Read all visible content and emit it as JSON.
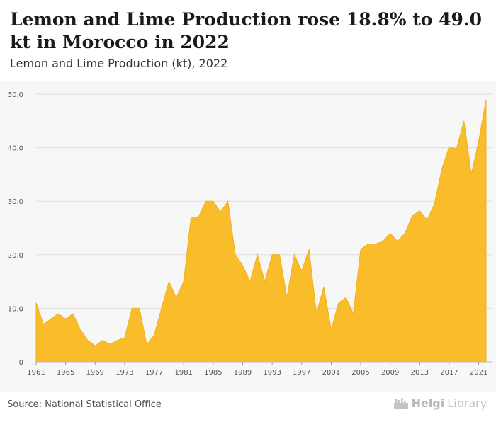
{
  "header": {
    "title": "Lemon and Lime Production rose 18.8% to 49.0 kt in Morocco in 2022",
    "subtitle": "Lemon and Lime Production (kt), 2022"
  },
  "footer": {
    "source": "Source: National Statistical Office",
    "logo_name": "Helgi",
    "logo_suffix": "Library."
  },
  "colors": {
    "area_fill": "#f9bd2c",
    "area_stroke": "#f0b01a",
    "grid": "#dddddd",
    "axis_text": "#555555"
  },
  "chart_data": {
    "type": "area",
    "title": "Lemon and Lime Production (kt), 2022",
    "xlabel": "",
    "ylabel": "",
    "ylim": [
      0,
      50
    ],
    "xlim": [
      1961,
      2022
    ],
    "yticks": [
      0,
      10.0,
      20.0,
      30.0,
      40.0,
      50.0
    ],
    "ytick_labels": [
      "0",
      "10.0",
      "20.0",
      "30.0",
      "40.0",
      "50.0"
    ],
    "xticks": [
      1961,
      1965,
      1969,
      1973,
      1977,
      1981,
      1985,
      1989,
      1993,
      1997,
      2001,
      2005,
      2009,
      2013,
      2017,
      2021
    ],
    "grid": true,
    "series": [
      {
        "x": [
          1961,
          1962,
          1963,
          1964,
          1965,
          1966,
          1967,
          1968,
          1969,
          1970,
          1971,
          1972,
          1973,
          1974,
          1975,
          1976,
          1977,
          1978,
          1979,
          1980,
          1981,
          1982,
          1983,
          1984,
          1985,
          1986,
          1987,
          1988,
          1989,
          1990,
          1991,
          1992,
          1993,
          1994,
          1995,
          1996,
          1997,
          1998,
          1999,
          2000,
          2001,
          2002,
          2003,
          2004,
          2005,
          2006,
          2007,
          2008,
          2009,
          2010,
          2011,
          2012,
          2013,
          2014,
          2015,
          2016,
          2017,
          2018,
          2019,
          2020,
          2021,
          2022
        ],
        "values": [
          11.0,
          7.0,
          8.0,
          9.0,
          8.0,
          9.0,
          6.0,
          4.0,
          3.0,
          4.0,
          3.3,
          4.0,
          4.5,
          10.0,
          10.0,
          3.2,
          5.0,
          10.0,
          15.0,
          12.0,
          15.0,
          27.0,
          27.0,
          30.0,
          30.0,
          28.0,
          30.0,
          20.0,
          18.0,
          15.0,
          20.0,
          15.0,
          20.0,
          20.0,
          12.0,
          20.0,
          17.0,
          21.0,
          9.0,
          14.0,
          6.0,
          11.0,
          12.0,
          9.0,
          21.0,
          22.0,
          22.0,
          22.5,
          24.0,
          22.5,
          24.0,
          27.3,
          28.2,
          26.5,
          29.5,
          36.0,
          40.2,
          39.8,
          45.0,
          35.0,
          41.2,
          49.0
        ]
      }
    ]
  }
}
